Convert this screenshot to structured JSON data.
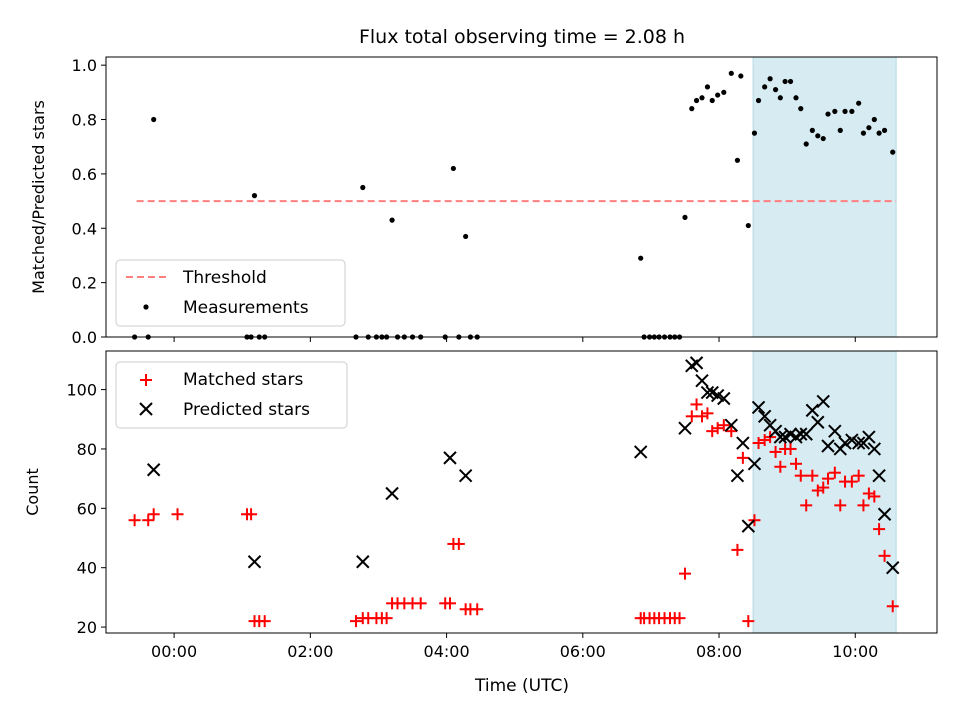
{
  "colors": {
    "threshold": "#ff7f7f",
    "measurement": "#000000",
    "matched": "#ff0000",
    "predicted": "#000000",
    "highlight": "#add8e6"
  },
  "chart_data": [
    {
      "type": "scatter",
      "title": "Flux total observing time = 2.08 h",
      "ylabel": "Matched/Predicted stars",
      "xlim": [
        -1.0,
        11.2
      ],
      "ylim": [
        0.0,
        1.03
      ],
      "yticks": [
        0.0,
        0.2,
        0.4,
        0.6,
        0.8,
        1.0
      ],
      "ytick_labels": [
        "0.0",
        "0.2",
        "0.4",
        "0.6",
        "0.8",
        "1.0"
      ],
      "xticks": [
        0,
        2,
        4,
        6,
        8,
        10
      ],
      "highlight_span": [
        8.5,
        10.6
      ],
      "threshold": {
        "y": 0.5,
        "x_range": [
          -0.55,
          10.6
        ]
      },
      "legend": {
        "placement": "lower-left",
        "entries": [
          "Threshold",
          "Measurements"
        ]
      },
      "series": [
        {
          "name": "Measurements",
          "points": [
            [
              -0.58,
              0.0
            ],
            [
              -0.38,
              0.0
            ],
            [
              -0.3,
              0.8
            ],
            [
              1.07,
              0.0
            ],
            [
              1.13,
              0.0
            ],
            [
              1.18,
              0.52
            ],
            [
              1.25,
              0.0
            ],
            [
              1.33,
              0.0
            ],
            [
              2.67,
              0.0
            ],
            [
              2.77,
              0.55
            ],
            [
              2.85,
              0.0
            ],
            [
              2.97,
              0.0
            ],
            [
              3.05,
              0.0
            ],
            [
              3.12,
              0.0
            ],
            [
              3.2,
              0.43
            ],
            [
              3.28,
              0.0
            ],
            [
              3.38,
              0.0
            ],
            [
              3.5,
              0.0
            ],
            [
              3.62,
              0.0
            ],
            [
              3.98,
              0.0
            ],
            [
              4.1,
              0.62
            ],
            [
              4.18,
              0.0
            ],
            [
              4.28,
              0.37
            ],
            [
              4.35,
              0.0
            ],
            [
              4.45,
              0.0
            ],
            [
              6.85,
              0.29
            ],
            [
              6.9,
              0.0
            ],
            [
              6.98,
              0.0
            ],
            [
              7.05,
              0.0
            ],
            [
              7.12,
              0.0
            ],
            [
              7.2,
              0.0
            ],
            [
              7.28,
              0.0
            ],
            [
              7.35,
              0.0
            ],
            [
              7.42,
              0.0
            ],
            [
              7.5,
              0.44
            ],
            [
              7.6,
              0.84
            ],
            [
              7.67,
              0.87
            ],
            [
              7.75,
              0.88
            ],
            [
              7.83,
              0.92
            ],
            [
              7.9,
              0.87
            ],
            [
              7.98,
              0.89
            ],
            [
              8.07,
              0.9
            ],
            [
              8.18,
              0.97
            ],
            [
              8.27,
              0.65
            ],
            [
              8.32,
              0.96
            ],
            [
              8.43,
              0.41
            ],
            [
              8.52,
              0.75
            ],
            [
              8.58,
              0.87
            ],
            [
              8.67,
              0.92
            ],
            [
              8.75,
              0.95
            ],
            [
              8.83,
              0.91
            ],
            [
              8.9,
              0.88
            ],
            [
              8.97,
              0.94
            ],
            [
              9.05,
              0.94
            ],
            [
              9.13,
              0.88
            ],
            [
              9.2,
              0.84
            ],
            [
              9.28,
              0.71
            ],
            [
              9.37,
              0.76
            ],
            [
              9.45,
              0.74
            ],
            [
              9.53,
              0.73
            ],
            [
              9.6,
              0.82
            ],
            [
              9.7,
              0.83
            ],
            [
              9.78,
              0.76
            ],
            [
              9.85,
              0.83
            ],
            [
              9.95,
              0.83
            ],
            [
              10.05,
              0.86
            ],
            [
              10.12,
              0.75
            ],
            [
              10.2,
              0.77
            ],
            [
              10.28,
              0.8
            ],
            [
              10.35,
              0.75
            ],
            [
              10.43,
              0.76
            ],
            [
              10.55,
              0.68
            ]
          ]
        }
      ]
    },
    {
      "type": "scatter",
      "xlabel": "Time (UTC)",
      "ylabel": "Count",
      "xlim": [
        -1.0,
        11.2
      ],
      "ylim": [
        18,
        113
      ],
      "yticks": [
        20,
        40,
        60,
        80,
        100
      ],
      "ytick_labels": [
        "20",
        "40",
        "60",
        "80",
        "100"
      ],
      "xticks": [
        0,
        2,
        4,
        6,
        8,
        10
      ],
      "xtick_labels": [
        "00:00",
        "02:00",
        "04:00",
        "06:00",
        "08:00",
        "10:00"
      ],
      "highlight_span": [
        8.5,
        10.6
      ],
      "legend": {
        "placement": "top-left",
        "entries": [
          "Matched stars",
          "Predicted stars"
        ]
      },
      "series": [
        {
          "name": "Matched stars",
          "marker": "plus",
          "points": [
            [
              -0.58,
              56
            ],
            [
              -0.38,
              56
            ],
            [
              -0.3,
              58
            ],
            [
              0.05,
              58
            ],
            [
              1.07,
              58
            ],
            [
              1.13,
              58
            ],
            [
              1.18,
              22
            ],
            [
              1.25,
              22
            ],
            [
              1.33,
              22
            ],
            [
              2.67,
              22
            ],
            [
              2.77,
              23
            ],
            [
              2.85,
              23
            ],
            [
              2.97,
              23
            ],
            [
              3.05,
              23
            ],
            [
              3.12,
              23
            ],
            [
              3.2,
              28
            ],
            [
              3.28,
              28
            ],
            [
              3.38,
              28
            ],
            [
              3.5,
              28
            ],
            [
              3.62,
              28
            ],
            [
              3.98,
              28
            ],
            [
              4.05,
              28
            ],
            [
              4.1,
              48
            ],
            [
              4.18,
              48
            ],
            [
              4.28,
              26
            ],
            [
              4.35,
              26
            ],
            [
              4.45,
              26
            ],
            [
              6.85,
              23
            ],
            [
              6.9,
              23
            ],
            [
              6.98,
              23
            ],
            [
              7.05,
              23
            ],
            [
              7.12,
              23
            ],
            [
              7.2,
              23
            ],
            [
              7.28,
              23
            ],
            [
              7.35,
              23
            ],
            [
              7.42,
              23
            ],
            [
              7.5,
              38
            ],
            [
              7.6,
              91
            ],
            [
              7.67,
              95
            ],
            [
              7.75,
              91
            ],
            [
              7.83,
              92
            ],
            [
              7.9,
              86
            ],
            [
              7.98,
              87
            ],
            [
              8.07,
              88
            ],
            [
              8.18,
              86
            ],
            [
              8.27,
              46
            ],
            [
              8.35,
              77
            ],
            [
              8.43,
              22
            ],
            [
              8.52,
              56
            ],
            [
              8.58,
              82
            ],
            [
              8.67,
              83
            ],
            [
              8.75,
              84
            ],
            [
              8.83,
              79
            ],
            [
              8.9,
              74
            ],
            [
              8.97,
              80
            ],
            [
              9.05,
              80
            ],
            [
              9.13,
              75
            ],
            [
              9.2,
              71
            ],
            [
              9.28,
              61
            ],
            [
              9.37,
              71
            ],
            [
              9.45,
              66
            ],
            [
              9.53,
              67
            ],
            [
              9.6,
              70
            ],
            [
              9.7,
              72
            ],
            [
              9.78,
              61
            ],
            [
              9.85,
              69
            ],
            [
              9.95,
              69
            ],
            [
              10.05,
              71
            ],
            [
              10.12,
              61
            ],
            [
              10.2,
              65
            ],
            [
              10.28,
              64
            ],
            [
              10.35,
              53
            ],
            [
              10.43,
              44
            ],
            [
              10.55,
              27
            ]
          ]
        },
        {
          "name": "Predicted stars",
          "marker": "x",
          "points": [
            [
              -0.3,
              73
            ],
            [
              1.18,
              42
            ],
            [
              2.77,
              42
            ],
            [
              3.2,
              65
            ],
            [
              4.05,
              77
            ],
            [
              4.28,
              71
            ],
            [
              6.85,
              79
            ],
            [
              7.5,
              87
            ],
            [
              7.6,
              108
            ],
            [
              7.67,
              109
            ],
            [
              7.75,
              103
            ],
            [
              7.83,
              99
            ],
            [
              7.9,
              99
            ],
            [
              7.98,
              98
            ],
            [
              8.07,
              97
            ],
            [
              8.18,
              88
            ],
            [
              8.27,
              71
            ],
            [
              8.35,
              82
            ],
            [
              8.43,
              54
            ],
            [
              8.52,
              75
            ],
            [
              8.58,
              94
            ],
            [
              8.67,
              91
            ],
            [
              8.75,
              88
            ],
            [
              8.83,
              86
            ],
            [
              8.9,
              84
            ],
            [
              8.97,
              84
            ],
            [
              9.05,
              85
            ],
            [
              9.13,
              84
            ],
            [
              9.2,
              85
            ],
            [
              9.28,
              85
            ],
            [
              9.37,
              93
            ],
            [
              9.45,
              89
            ],
            [
              9.53,
              96
            ],
            [
              9.6,
              81
            ],
            [
              9.7,
              86
            ],
            [
              9.78,
              80
            ],
            [
              9.85,
              82
            ],
            [
              9.95,
              83
            ],
            [
              10.05,
              82
            ],
            [
              10.12,
              82
            ],
            [
              10.2,
              84
            ],
            [
              10.28,
              80
            ],
            [
              10.35,
              71
            ],
            [
              10.43,
              58
            ],
            [
              10.55,
              40
            ]
          ]
        }
      ]
    }
  ]
}
